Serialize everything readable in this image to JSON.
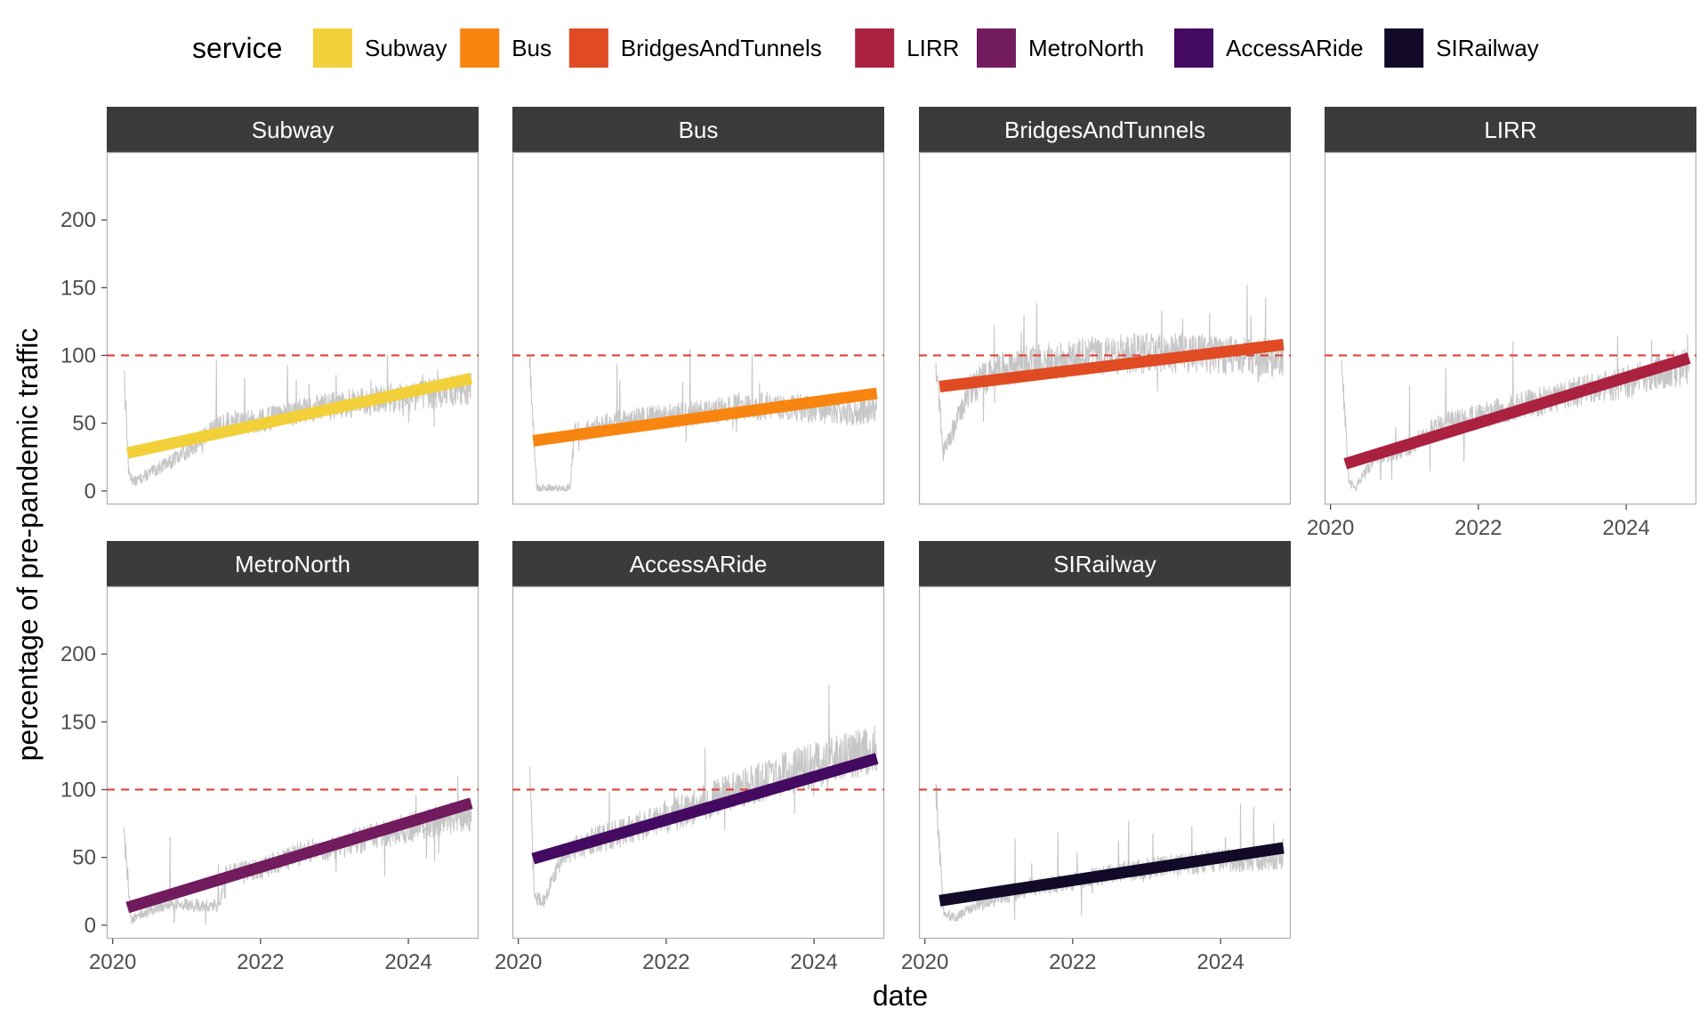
{
  "chart_data": {
    "type": "line",
    "xlabel": "date",
    "ylabel": "percentage of pre-pandemic traffic",
    "x_ticks": [
      "2020",
      "2022",
      "2024"
    ],
    "x_tick_values": [
      2020,
      2022,
      2024
    ],
    "xlim": [
      2019.92,
      2024.95
    ],
    "y_ticks": [
      0,
      50,
      100,
      150,
      200
    ],
    "ylim": [
      -10,
      250
    ],
    "reference_line": {
      "y": 100,
      "color": "#e0423a",
      "style": "dashed"
    },
    "legend": {
      "title": "service",
      "position": "top"
    },
    "grid": false,
    "panels": [
      {
        "name": "Subway",
        "color": "#f2d03a",
        "trend": {
          "x": [
            2020.2,
            2024.85
          ],
          "y": [
            28,
            83
          ]
        },
        "raw_profile": {
          "x": [
            2020.15,
            2020.22,
            2020.3,
            2020.5,
            2020.8,
            2021.0,
            2021.5,
            2022.0,
            2022.5,
            2023.0,
            2023.5,
            2024.0,
            2024.5,
            2024.85
          ],
          "y": [
            95,
            12,
            7,
            13,
            22,
            30,
            50,
            52,
            58,
            63,
            67,
            70,
            73,
            75
          ]
        }
      },
      {
        "name": "Bus",
        "color": "#f8850f",
        "trend": {
          "x": [
            2020.2,
            2024.85
          ],
          "y": [
            37,
            72
          ]
        },
        "raw_profile": {
          "x": [
            2020.15,
            2020.25,
            2020.7,
            2020.75,
            2021.0,
            2021.5,
            2022.0,
            2022.5,
            2023.0,
            2023.5,
            2024.0,
            2024.5,
            2024.85
          ],
          "y": [
            97,
            2,
            2,
            42,
            47,
            52,
            55,
            58,
            62,
            63,
            60,
            58,
            60
          ]
        }
      },
      {
        "name": "BridgesAndTunnels",
        "color": "#e04b24",
        "trend": {
          "x": [
            2020.2,
            2024.85
          ],
          "y": [
            77,
            108
          ]
        },
        "raw_profile": {
          "x": [
            2020.15,
            2020.25,
            2020.4,
            2020.6,
            2021.0,
            2021.5,
            2022.0,
            2022.5,
            2023.0,
            2023.5,
            2024.0,
            2024.5,
            2024.85
          ],
          "y": [
            98,
            28,
            48,
            75,
            90,
            95,
            98,
            100,
            102,
            102,
            100,
            98,
            99
          ]
        }
      },
      {
        "name": "LIRR",
        "color": "#ab2240",
        "trend": {
          "x": [
            2020.2,
            2024.85
          ],
          "y": [
            20,
            98
          ]
        },
        "raw_profile": {
          "x": [
            2020.15,
            2020.25,
            2020.35,
            2020.6,
            2021.0,
            2021.5,
            2022.0,
            2022.5,
            2023.0,
            2023.5,
            2024.0,
            2024.5,
            2024.85
          ],
          "y": [
            98,
            5,
            3,
            25,
            30,
            50,
            55,
            62,
            68,
            75,
            80,
            88,
            92
          ]
        }
      },
      {
        "name": "MetroNorth",
        "color": "#721b5f",
        "trend": {
          "x": [
            2020.2,
            2024.85
          ],
          "y": [
            13,
            90
          ]
        },
        "raw_profile": {
          "x": [
            2020.15,
            2020.25,
            2020.4,
            2020.7,
            2021.0,
            2021.45,
            2021.5,
            2022.0,
            2022.5,
            2023.0,
            2023.5,
            2024.0,
            2024.5,
            2024.85
          ],
          "y": [
            72,
            4,
            8,
            15,
            15,
            14,
            38,
            42,
            52,
            58,
            65,
            72,
            78,
            82
          ]
        }
      },
      {
        "name": "AccessARide",
        "color": "#440a62",
        "trend": {
          "x": [
            2020.2,
            2024.85
          ],
          "y": [
            49,
            123
          ]
        },
        "raw_profile": {
          "x": [
            2020.15,
            2020.22,
            2020.35,
            2020.6,
            2021.0,
            2021.5,
            2022.0,
            2022.5,
            2023.0,
            2023.5,
            2024.0,
            2024.5,
            2024.85
          ],
          "y": [
            112,
            20,
            18,
            52,
            62,
            70,
            80,
            90,
            100,
            110,
            118,
            125,
            130
          ]
        }
      },
      {
        "name": "SIRailway",
        "color": "#130a29",
        "trend": {
          "x": [
            2020.2,
            2024.85
          ],
          "y": [
            18,
            57
          ]
        },
        "raw_profile": {
          "x": [
            2020.15,
            2020.25,
            2020.4,
            2020.7,
            2021.0,
            2021.5,
            2022.0,
            2022.5,
            2023.0,
            2023.5,
            2024.0,
            2024.5,
            2024.85
          ],
          "y": [
            100,
            10,
            5,
            15,
            20,
            28,
            32,
            38,
            42,
            45,
            48,
            48,
            50
          ]
        }
      }
    ]
  }
}
